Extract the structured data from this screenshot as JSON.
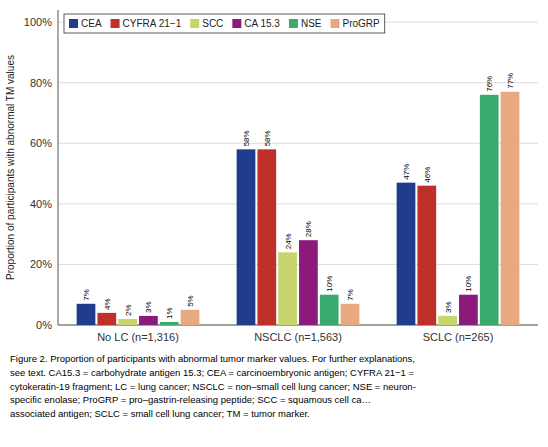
{
  "chart_data": {
    "type": "bar",
    "categories": [
      "No LC (n=1,316)",
      "NSCLC (n=1,563)",
      "SCLC (n=265)"
    ],
    "series": [
      {
        "name": "CEA",
        "color": "#1f3d8c",
        "values": [
          7,
          58,
          47
        ],
        "value_labels": [
          "7%",
          "58%",
          "47%"
        ]
      },
      {
        "name": "CYFRA 21−1",
        "color": "#c0302a",
        "values": [
          4,
          58,
          46
        ],
        "value_labels": [
          "4%",
          "58%",
          "46%"
        ]
      },
      {
        "name": "SCC",
        "color": "#c8d46e",
        "values": [
          2,
          24,
          3
        ],
        "value_labels": [
          "2%",
          "24%",
          "3%"
        ]
      },
      {
        "name": "CA 15.3",
        "color": "#8b1a7a",
        "values": [
          3,
          28,
          10
        ],
        "value_labels": [
          "3%",
          "28%",
          "10%"
        ]
      },
      {
        "name": "NSE",
        "color": "#3aaa6e",
        "values": [
          1,
          10,
          76
        ],
        "value_labels": [
          "1%",
          "10%",
          "76%"
        ]
      },
      {
        "name": "ProGRP",
        "color": "#e8a882",
        "values": [
          5,
          7,
          77
        ],
        "value_labels": [
          "5%",
          "7%",
          "77%"
        ]
      }
    ],
    "ylabel": "Proportion of participants with abnormal TM values",
    "ylim": [
      0,
      104
    ],
    "yticks": [
      {
        "value": 0,
        "label": "0%"
      },
      {
        "value": 20,
        "label": "20%"
      },
      {
        "value": 40,
        "label": "40%"
      },
      {
        "value": 60,
        "label": "60%"
      },
      {
        "value": 80,
        "label": "80%"
      },
      {
        "value": 100,
        "label": "100%"
      }
    ],
    "grid": true,
    "legend": "upper left",
    "data_labels": true,
    "annotations": [
      "Figure 2.  Proportion of participants with abnormal tumor marker values. For further explanations,",
      "see text. CA15.3 = carbohydrate antigen 15.3; CEA = carcinoembryonic antigen; CYFRA 21−1 =",
      "cytokeratin-19 fragment; LC = lung cancer; NSCLC = non–small cell lung cancer; NSE = neuron-",
      "specific enolase; ProGRP = pro–gastrin-releasing peptide; SCC = squamous cell ca…",
      "associated antigen; SCLC = small cell lung cancer; TM = tumor marker."
    ]
  }
}
